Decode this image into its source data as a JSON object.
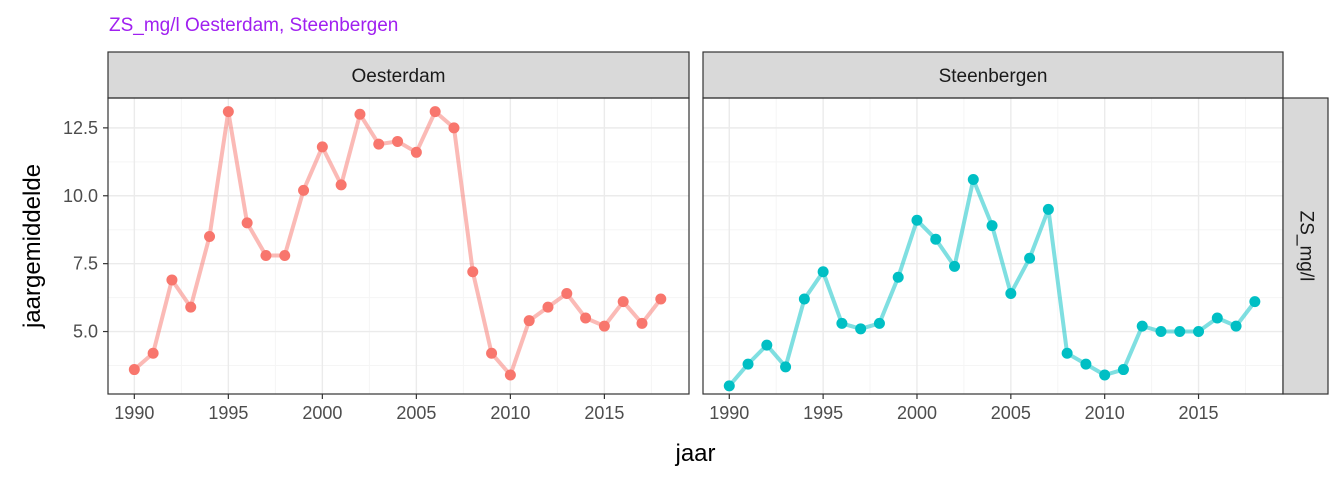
{
  "title": "ZS_mg/l Oesterdam, Steenbergen",
  "colors": {
    "title": "#a020f0",
    "oesterdam": "#f8766d",
    "steenbergen": "#00bfc4",
    "strip_fill": "#d9d9d9",
    "grid_major": "#ebebeb",
    "grid_minor": "#f5f5f5",
    "panel_border": "#333333"
  },
  "chart_data": {
    "type": "line",
    "title": "ZS_mg/l Oesterdam, Steenbergen",
    "xlabel": "jaar",
    "ylabel": "jaargemiddelde",
    "row_strip": "ZS_mg/l",
    "xlim": [
      1988.6,
      2019.5
    ],
    "ylim": [
      2.7,
      13.6
    ],
    "x_ticks": [
      1990,
      1995,
      2000,
      2005,
      2010,
      2015
    ],
    "x_tick_labels": [
      "1990",
      "1995",
      "2000",
      "2005",
      "2010",
      "2015"
    ],
    "y_ticks": [
      5.0,
      7.5,
      10.0,
      12.5
    ],
    "y_tick_labels": [
      "5.0",
      "7.5",
      "10.0",
      "12.5"
    ],
    "grid": true,
    "facets": [
      {
        "label": "Oesterdam",
        "color_key": "oesterdam",
        "x": [
          1990,
          1991,
          1992,
          1993,
          1994,
          1995,
          1996,
          1997,
          1998,
          1999,
          2000,
          2001,
          2002,
          2003,
          2004,
          2005,
          2006,
          2007,
          2008,
          2009,
          2010,
          2011,
          2012,
          2013,
          2014,
          2015,
          2016,
          2017,
          2018
        ],
        "y": [
          3.6,
          4.2,
          6.9,
          5.9,
          8.5,
          13.1,
          9.0,
          7.8,
          7.8,
          10.2,
          11.8,
          10.4,
          13.0,
          11.9,
          12.0,
          11.6,
          13.1,
          12.5,
          7.2,
          4.2,
          3.4,
          5.4,
          5.9,
          6.4,
          5.5,
          5.2,
          6.1,
          5.3,
          6.2
        ]
      },
      {
        "label": "Steenbergen",
        "color_key": "steenbergen",
        "x": [
          1990,
          1991,
          1992,
          1993,
          1994,
          1995,
          1996,
          1997,
          1998,
          1999,
          2000,
          2001,
          2002,
          2003,
          2004,
          2005,
          2006,
          2007,
          2008,
          2009,
          2010,
          2011,
          2012,
          2013,
          2014,
          2015,
          2016,
          2017,
          2018
        ],
        "y": [
          3.0,
          3.8,
          4.5,
          3.7,
          6.2,
          7.2,
          5.3,
          5.1,
          5.3,
          7.0,
          9.1,
          8.4,
          7.4,
          10.6,
          8.9,
          6.4,
          7.7,
          9.5,
          4.2,
          3.8,
          3.4,
          3.6,
          5.2,
          5.0,
          5.0,
          5.0,
          5.5,
          5.2,
          6.1
        ]
      }
    ]
  }
}
